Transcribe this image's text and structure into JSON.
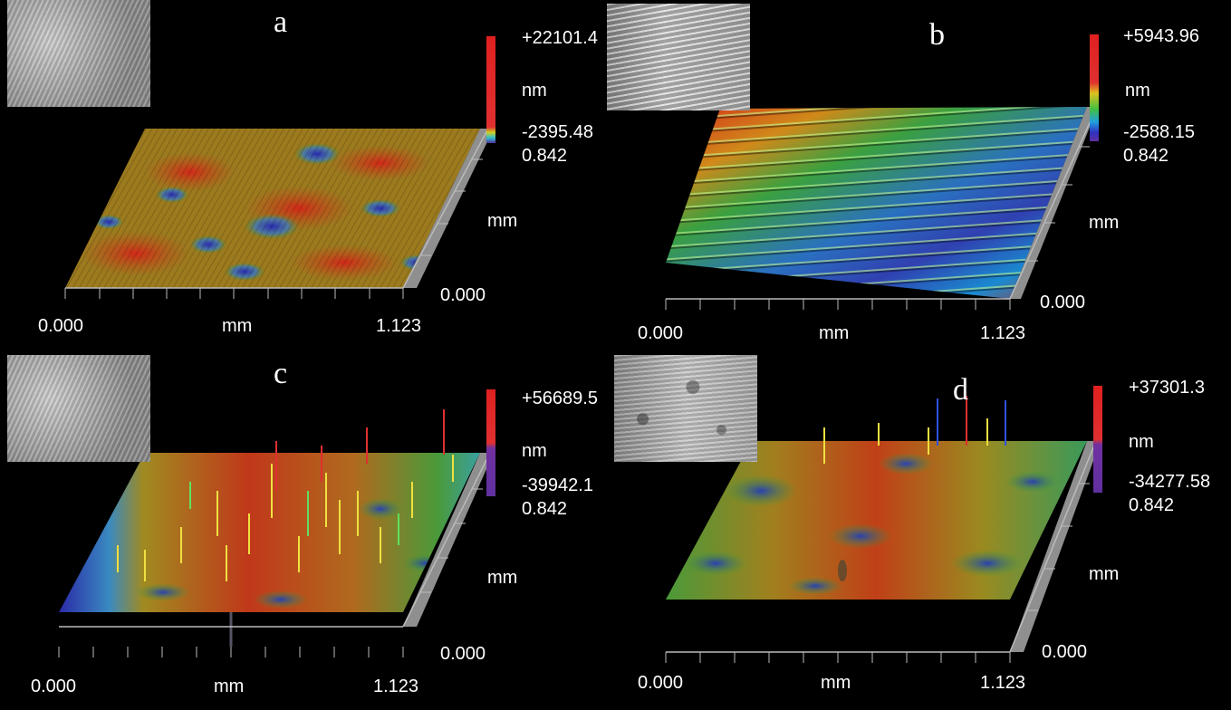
{
  "figure": {
    "panels": [
      {
        "letter": "a",
        "zmax": "+22101.4",
        "z_unit": "nm",
        "zmin": "-2395.48",
        "y_max": "0.842",
        "y_unit": "mm",
        "y_min": "0.000",
        "x_min": "0.000",
        "x_unit": "mm",
        "x_max": "1.123"
      },
      {
        "letter": "b",
        "zmax": "+5943.96",
        "z_unit": "nm",
        "zmin": "-2588.15",
        "y_max": "0.842",
        "y_unit": "mm",
        "y_min": "0.000",
        "x_min": "0.000",
        "x_unit": "mm",
        "x_max": "1.123"
      },
      {
        "letter": "c",
        "zmax": "+56689.5",
        "z_unit": "nm",
        "zmin": "-39942.1",
        "y_max": "0.842",
        "y_unit": "mm",
        "y_min": "0.000",
        "x_min": "0.000",
        "x_unit": "mm",
        "x_max": "1.123"
      },
      {
        "letter": "d",
        "zmax": "+37301.3",
        "z_unit": "nm",
        "zmin": "-34277.58",
        "y_max": "0.842",
        "y_unit": "mm",
        "y_min": "0.000",
        "x_min": "0.000",
        "x_unit": "mm",
        "x_max": "1.123"
      }
    ],
    "colors": {
      "background": "#000000",
      "surface_high": "#d12a1a",
      "surface_mid": "#9c8a1e",
      "surface_green": "#3f9b3a",
      "surface_low": "#2a2aa8",
      "side_wall": "#8f8f8f"
    }
  }
}
